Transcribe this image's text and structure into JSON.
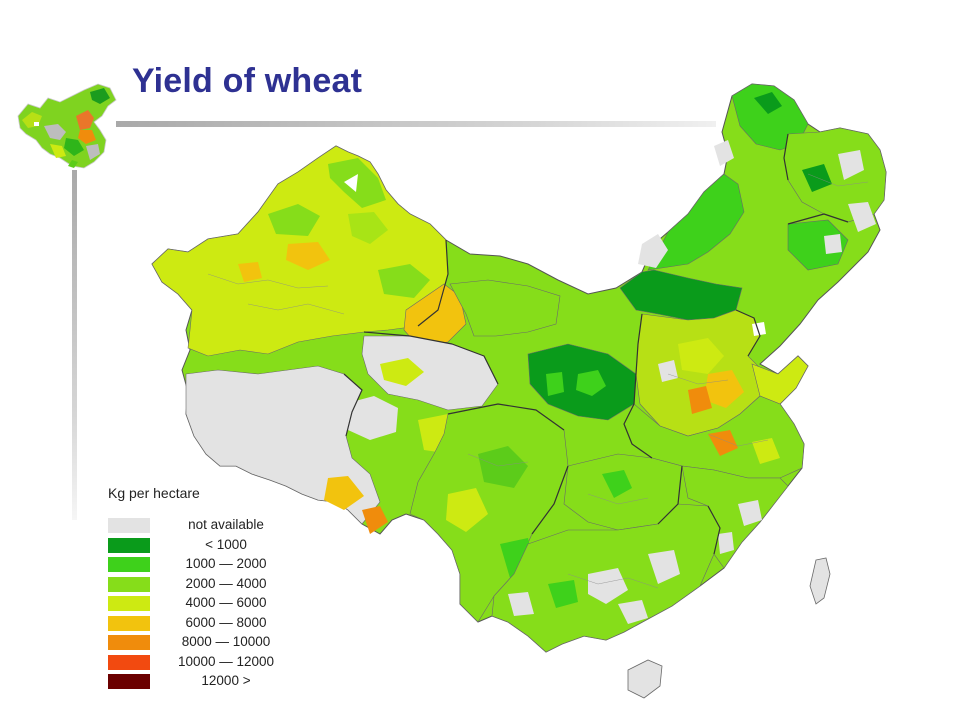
{
  "slide": {
    "title": "Yield of wheat"
  },
  "legend": {
    "title": "Kg per hectare",
    "items": [
      {
        "label": "not available",
        "color": "#e3e3e3"
      },
      {
        "label": "<  1000",
        "color": "#0a9b1b"
      },
      {
        "label": "1000  —  2000",
        "color": "#3ed11b"
      },
      {
        "label": "2000  —  4000",
        "color": "#86dd1a"
      },
      {
        "label": "4000  —  6000",
        "color": "#cdea12"
      },
      {
        "label": "6000  —  8000",
        "color": "#f2c30e"
      },
      {
        "label": "8000  —  10000",
        "color": "#f08c0c"
      },
      {
        "label": "10000  —  12000",
        "color": "#f24a10"
      },
      {
        "label": "12000  >",
        "color": "#6b0000"
      }
    ]
  },
  "colors": {
    "title": "#2E3192",
    "rule": "#bfbfbf"
  }
}
